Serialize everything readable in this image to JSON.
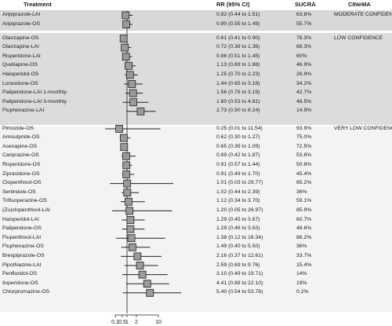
{
  "headers": {
    "treatment": "Treatment",
    "rr": "RR (95% CI)",
    "sucra": "SUCRA",
    "cinema": "CINeMA"
  },
  "colors": {
    "group_bg_dark": "#d8d8d8",
    "group_bg_light": "#f3f3f3",
    "box_fill": "#9a9a9a"
  },
  "chart_data": {
    "type": "forest",
    "xscale": "log",
    "xticks": [
      "0.1",
      "0.5",
      "1",
      "2",
      "10"
    ],
    "xtick_values": [
      0.1,
      0.5,
      1,
      2,
      10
    ],
    "xlim": [
      0.1,
      20
    ],
    "reference_line": 1,
    "groups": [
      {
        "label": "MODERATE CONFIDENCE",
        "rows": [
          {
            "name": "Aripiprazole-LAI",
            "rr_text": "0.82 (0.44 to 1.51)",
            "sucra": "63.8%",
            "est": 0.82,
            "lo": 0.44,
            "hi": 1.51
          },
          {
            "name": "Aripiprazole-OS",
            "rr_text": "0.90 (0.55 to 1.49)",
            "sucra": "55.7%",
            "est": 0.9,
            "lo": 0.55,
            "hi": 1.49
          }
        ]
      },
      {
        "label": "LOW CONFIDENCE",
        "rows": [
          {
            "name": "Olanzapine-OS",
            "rr_text": "0.61 (0.41 to 0.90)",
            "sucra": "78.3%",
            "est": 0.61,
            "lo": 0.41,
            "hi": 0.9
          },
          {
            "name": "Olanzapine-LAI",
            "rr_text": "0.72 (0.38 to 1.36)",
            "sucra": "68.3%",
            "est": 0.72,
            "lo": 0.38,
            "hi": 1.36
          },
          {
            "name": "Risperidone-LAI",
            "rr_text": "0.86 (0.51 to 1.45)",
            "sucra": "60%",
            "est": 0.86,
            "lo": 0.51,
            "hi": 1.45
          },
          {
            "name": "Quetiapine-OS",
            "rr_text": "1.13 (0.69 to 1.88)",
            "sucra": "46.9%",
            "est": 1.13,
            "lo": 0.69,
            "hi": 1.88
          },
          {
            "name": "Haloperidol-OS",
            "rr_text": "1.25 (0.70 to 2.23)",
            "sucra": "26.9%",
            "est": 1.25,
            "lo": 0.7,
            "hi": 2.23
          },
          {
            "name": "Lurasidone-OS",
            "rr_text": "1.44 (0.65 to 3.18)",
            "sucra": "34.2%",
            "est": 1.44,
            "lo": 0.65,
            "hi": 3.18
          },
          {
            "name": "Paliperidone-LAI 1-monthly",
            "rr_text": "1.56 (0.76 to 3.19)",
            "sucra": "42.7%",
            "est": 1.56,
            "lo": 0.76,
            "hi": 3.19
          },
          {
            "name": "Paliperidone-LAI 3-monthly",
            "rr_text": "1.60 (0.53 to 4.81)",
            "sucra": "48.5%",
            "est": 1.6,
            "lo": 0.53,
            "hi": 4.81
          },
          {
            "name": "Fluphenazine-LAI",
            "rr_text": "2.73 (0.90 to 8.24)",
            "sucra": "14.9%",
            "est": 2.73,
            "lo": 0.9,
            "hi": 8.24
          }
        ]
      },
      {
        "label": "VERY LOW CONFIDENCE",
        "rows": [
          {
            "name": "Pimozide-OS",
            "rr_text": "0.25 (0.01 to 11.54)",
            "sucra": "93.9%",
            "est": 0.25,
            "lo": 0.01,
            "hi": 11.54
          },
          {
            "name": "Amisulpride-OS",
            "rr_text": "0.62 (0.30 to 1.27)",
            "sucra": "75.0%",
            "est": 0.62,
            "lo": 0.3,
            "hi": 1.27
          },
          {
            "name": "Asenapine-OS",
            "rr_text": "0.65 (0.39 to 1.09)",
            "sucra": "72.5%",
            "est": 0.65,
            "lo": 0.39,
            "hi": 1.09
          },
          {
            "name": "Cariprazine-OS",
            "rr_text": "0.89 (0.42 to 1.87)",
            "sucra": "53.6%",
            "est": 0.89,
            "lo": 0.42,
            "hi": 1.87
          },
          {
            "name": "Risperidone-OS",
            "rr_text": "0.91 (0.57 to 1.44)",
            "sucra": "50.8%",
            "est": 0.91,
            "lo": 0.57,
            "hi": 1.44
          },
          {
            "name": "Ziprasidone-OS",
            "rr_text": "0.91 (0.49 to 1.70)",
            "sucra": "45.4%",
            "est": 0.91,
            "lo": 0.49,
            "hi": 1.7
          },
          {
            "name": "Clopenthixol-OS",
            "rr_text": "1.01 (0.03 to 29.77)",
            "sucra": "65.2%",
            "est": 1.01,
            "lo": 0.03,
            "hi": 29.77
          },
          {
            "name": "Sertindole-OS",
            "rr_text": "1.02 (0.44 to 2.39)",
            "sucra": "36%",
            "est": 1.02,
            "lo": 0.44,
            "hi": 2.39
          },
          {
            "name": "Trifluoperazine-OS",
            "rr_text": "1.12 (0.34 to 3.70)",
            "sucra": "59.1%",
            "est": 1.12,
            "lo": 0.34,
            "hi": 3.7
          },
          {
            "name": "(Zu)clopenthixol-LAI",
            "rr_text": "1.20 (0.05 to 26.97)",
            "sucra": "85.9%",
            "est": 1.2,
            "lo": 0.05,
            "hi": 26.97
          },
          {
            "name": "Haloperidol-LAI",
            "rr_text": "1.29 (0.45 to 3.67)",
            "sucra": "60.7%",
            "est": 1.29,
            "lo": 0.45,
            "hi": 3.67
          },
          {
            "name": "Paliperidone-OS",
            "rr_text": "1.29 (0.46 to 3.63)",
            "sucra": "48.6%",
            "est": 1.29,
            "lo": 0.46,
            "hi": 3.63
          },
          {
            "name": "Flupenthixol-LAI",
            "rr_text": "1.38 (0.12 to 16.34)",
            "sucra": "88.2%",
            "est": 1.38,
            "lo": 0.12,
            "hi": 16.34
          },
          {
            "name": "Fluphenazine-OS",
            "rr_text": "1.49 (0.40 to 5.50)",
            "sucra": "36%",
            "est": 1.49,
            "lo": 0.4,
            "hi": 5.5
          },
          {
            "name": "Brexpiprazole-OS",
            "rr_text": "2.16 (0.37 to 12.61)",
            "sucra": "33.7%",
            "est": 2.16,
            "lo": 0.37,
            "hi": 12.61
          },
          {
            "name": "Pipothiazine-LAI",
            "rr_text": "2.59 (0.69 to 9.76)",
            "sucra": "15.4%",
            "est": 2.59,
            "lo": 0.69,
            "hi": 9.76
          },
          {
            "name": "Penfluridol-OS",
            "rr_text": "3.10 (0.49 to 19.71)",
            "sucra": "14%",
            "est": 3.1,
            "lo": 0.49,
            "hi": 19.71
          },
          {
            "name": "Iloperidone-OS",
            "rr_text": "4.41 (0.88 to 22.10)",
            "sucra": "19%",
            "est": 4.41,
            "lo": 0.88,
            "hi": 22.1
          },
          {
            "name": "Chlorpromazine-OS",
            "rr_text": "5.40 (0.54 to 53.78)",
            "sucra": "0.2%",
            "est": 5.4,
            "lo": 0.54,
            "hi": 53.78
          }
        ]
      }
    ]
  }
}
